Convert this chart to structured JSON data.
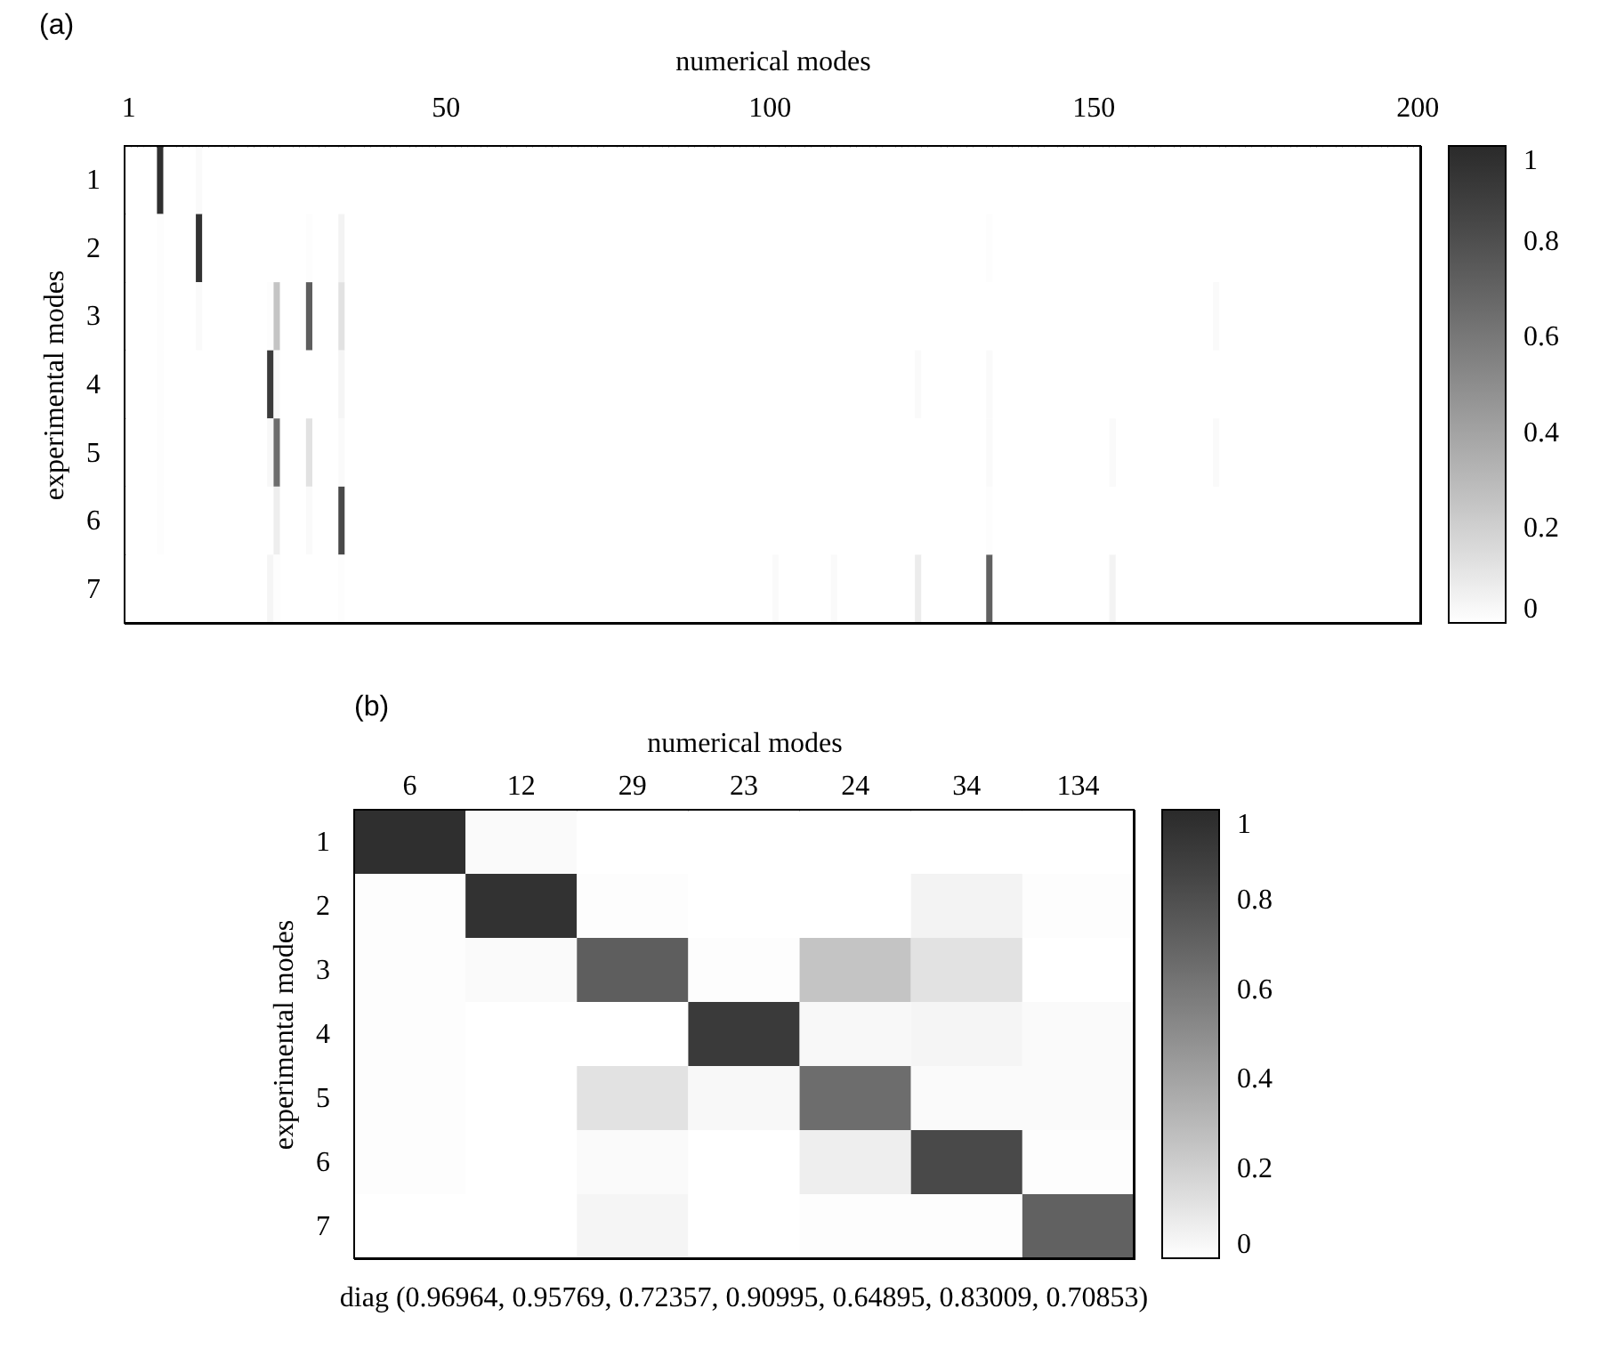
{
  "chart_data": [
    {
      "type": "heatmap",
      "title": "(a)",
      "xlabel": "numerical modes",
      "ylabel": "experimental modes",
      "x": [
        1,
        2,
        3,
        4,
        5,
        6,
        7,
        8,
        9,
        10,
        11,
        12,
        13,
        14,
        15,
        16,
        17,
        18,
        19,
        20,
        21,
        22,
        23,
        24,
        25,
        26,
        27,
        28,
        29,
        30,
        31,
        32,
        33,
        34,
        35,
        36,
        37,
        38,
        39,
        40,
        41,
        42,
        43,
        44,
        45,
        46,
        47,
        48,
        49,
        50,
        51,
        52,
        53,
        54,
        55,
        56,
        57,
        58,
        59,
        60,
        61,
        62,
        63,
        64,
        65,
        66,
        67,
        68,
        69,
        70,
        71,
        72,
        73,
        74,
        75,
        76,
        77,
        78,
        79,
        80,
        81,
        82,
        83,
        84,
        85,
        86,
        87,
        88,
        89,
        90,
        91,
        92,
        93,
        94,
        95,
        96,
        97,
        98,
        99,
        100,
        101,
        102,
        103,
        104,
        105,
        106,
        107,
        108,
        109,
        110,
        111,
        112,
        113,
        114,
        115,
        116,
        117,
        118,
        119,
        120,
        121,
        122,
        123,
        124,
        125,
        126,
        127,
        128,
        129,
        130,
        131,
        132,
        133,
        134,
        135,
        136,
        137,
        138,
        139,
        140,
        141,
        142,
        143,
        144,
        145,
        146,
        147,
        148,
        149,
        150,
        151,
        152,
        153,
        154,
        155,
        156,
        157,
        158,
        159,
        160,
        161,
        162,
        163,
        164,
        165,
        166,
        167,
        168,
        169,
        170,
        171,
        172,
        173,
        174,
        175,
        176,
        177,
        178,
        179,
        180,
        181,
        182,
        183,
        184,
        185,
        186,
        187,
        188,
        189,
        190,
        191,
        192,
        193,
        194,
        195,
        196,
        197,
        198,
        199,
        200
      ],
      "xlim": [
        0.5,
        200.5
      ],
      "xticks": [
        1,
        50,
        100,
        150,
        200
      ],
      "y_categories": [
        "1",
        "2",
        "3",
        "4",
        "5",
        "6",
        "7"
      ],
      "cells": [
        [
          0,
          0,
          0,
          0,
          0,
          0.96964,
          0,
          0,
          0,
          0,
          0,
          0.02,
          0,
          0,
          0,
          0,
          0,
          0,
          0,
          0,
          0,
          0,
          0,
          0,
          0,
          0,
          0,
          0,
          0,
          0,
          0,
          0,
          0,
          0,
          0,
          0,
          0,
          0,
          0,
          0,
          0,
          0,
          0,
          0,
          0,
          0,
          0,
          0,
          0,
          0,
          0,
          0,
          0,
          0,
          0,
          0,
          0,
          0,
          0,
          0,
          0,
          0,
          0,
          0,
          0,
          0,
          0,
          0,
          0,
          0,
          0,
          0,
          0,
          0,
          0,
          0,
          0,
          0,
          0,
          0,
          0,
          0,
          0,
          0,
          0,
          0,
          0,
          0,
          0,
          0,
          0,
          0,
          0,
          0,
          0,
          0,
          0,
          0,
          0,
          0,
          0,
          0,
          0,
          0,
          0,
          0,
          0,
          0,
          0,
          0,
          0,
          0,
          0,
          0,
          0,
          0,
          0,
          0,
          0,
          0,
          0,
          0,
          0,
          0,
          0,
          0,
          0,
          0,
          0,
          0,
          0,
          0,
          0,
          0,
          0,
          0,
          0,
          0,
          0,
          0,
          0,
          0,
          0,
          0,
          0,
          0,
          0,
          0,
          0,
          0,
          0,
          0,
          0,
          0,
          0,
          0,
          0,
          0,
          0,
          0,
          0,
          0,
          0,
          0,
          0,
          0,
          0,
          0,
          0,
          0,
          0,
          0,
          0,
          0,
          0,
          0,
          0,
          0,
          0,
          0,
          0,
          0,
          0,
          0,
          0,
          0,
          0,
          0,
          0,
          0,
          0,
          0,
          0,
          0,
          0,
          0,
          0,
          0,
          0,
          0
        ],
        [
          0,
          0,
          0,
          0,
          0,
          0.01,
          0,
          0,
          0,
          0,
          0,
          0.95769,
          0,
          0,
          0,
          0,
          0,
          0,
          0,
          0,
          0,
          0,
          0,
          0,
          0,
          0,
          0,
          0,
          0.01,
          0,
          0,
          0,
          0,
          0.05,
          0,
          0,
          0,
          0,
          0,
          0,
          0,
          0,
          0,
          0,
          0,
          0,
          0,
          0,
          0,
          0,
          0,
          0,
          0,
          0,
          0,
          0,
          0,
          0,
          0,
          0,
          0,
          0,
          0,
          0,
          0,
          0,
          0,
          0,
          0,
          0,
          0,
          0,
          0,
          0,
          0,
          0,
          0,
          0,
          0,
          0,
          0,
          0,
          0,
          0,
          0,
          0,
          0,
          0,
          0,
          0,
          0,
          0,
          0,
          0,
          0,
          0,
          0,
          0,
          0,
          0,
          0,
          0,
          0,
          0,
          0,
          0,
          0,
          0,
          0,
          0,
          0,
          0,
          0,
          0,
          0,
          0,
          0,
          0,
          0,
          0,
          0,
          0,
          0,
          0,
          0,
          0,
          0,
          0,
          0,
          0,
          0,
          0,
          0,
          0.01,
          0,
          0,
          0,
          0,
          0,
          0,
          0,
          0,
          0,
          0,
          0,
          0,
          0,
          0,
          0,
          0,
          0,
          0,
          0,
          0,
          0,
          0,
          0,
          0,
          0,
          0,
          0,
          0,
          0,
          0,
          0,
          0,
          0,
          0,
          0,
          0,
          0,
          0,
          0,
          0,
          0,
          0,
          0,
          0,
          0,
          0,
          0,
          0,
          0,
          0,
          0,
          0,
          0,
          0,
          0,
          0,
          0,
          0,
          0,
          0,
          0,
          0,
          0,
          0,
          0,
          0
        ],
        [
          0,
          0,
          0,
          0,
          0,
          0.01,
          0,
          0,
          0,
          0,
          0,
          0.02,
          0,
          0,
          0,
          0,
          0,
          0,
          0,
          0,
          0,
          0,
          0.01,
          0.25,
          0,
          0,
          0,
          0,
          0.72357,
          0,
          0,
          0,
          0,
          0.12,
          0,
          0,
          0,
          0,
          0,
          0,
          0,
          0,
          0,
          0,
          0,
          0,
          0,
          0,
          0,
          0,
          0,
          0,
          0,
          0,
          0,
          0,
          0,
          0,
          0,
          0,
          0,
          0,
          0,
          0,
          0,
          0,
          0,
          0,
          0,
          0,
          0,
          0,
          0,
          0,
          0,
          0,
          0,
          0,
          0,
          0,
          0,
          0,
          0,
          0,
          0,
          0,
          0,
          0,
          0,
          0,
          0,
          0,
          0,
          0,
          0,
          0,
          0,
          0,
          0,
          0,
          0,
          0,
          0,
          0,
          0,
          0,
          0,
          0,
          0,
          0,
          0,
          0,
          0,
          0,
          0,
          0,
          0,
          0,
          0,
          0,
          0,
          0,
          0,
          0,
          0,
          0,
          0,
          0,
          0,
          0,
          0,
          0,
          0,
          0,
          0,
          0,
          0,
          0,
          0,
          0,
          0,
          0,
          0,
          0,
          0,
          0,
          0,
          0,
          0,
          0,
          0,
          0,
          0,
          0,
          0,
          0,
          0,
          0,
          0,
          0,
          0,
          0,
          0,
          0,
          0,
          0,
          0,
          0,
          0.02,
          0,
          0,
          0,
          0,
          0,
          0,
          0,
          0,
          0,
          0,
          0,
          0,
          0,
          0,
          0,
          0,
          0,
          0,
          0,
          0,
          0,
          0,
          0,
          0,
          0,
          0,
          0,
          0,
          0,
          0,
          0
        ],
        [
          0,
          0,
          0,
          0,
          0,
          0.01,
          0,
          0,
          0,
          0,
          0,
          0,
          0,
          0,
          0,
          0,
          0,
          0,
          0,
          0,
          0,
          0,
          0.90995,
          0.03,
          0,
          0,
          0,
          0,
          0,
          0,
          0,
          0,
          0,
          0.04,
          0,
          0,
          0,
          0,
          0,
          0,
          0,
          0,
          0,
          0,
          0,
          0,
          0,
          0,
          0,
          0,
          0,
          0,
          0,
          0,
          0,
          0,
          0,
          0,
          0,
          0,
          0,
          0,
          0,
          0,
          0,
          0,
          0,
          0,
          0,
          0,
          0,
          0,
          0,
          0,
          0,
          0,
          0,
          0,
          0,
          0,
          0,
          0,
          0,
          0,
          0,
          0,
          0,
          0,
          0,
          0,
          0,
          0,
          0,
          0,
          0,
          0,
          0,
          0,
          0,
          0,
          0,
          0,
          0,
          0,
          0,
          0,
          0,
          0,
          0,
          0,
          0,
          0,
          0,
          0,
          0,
          0,
          0,
          0,
          0,
          0,
          0,
          0,
          0.02,
          0,
          0,
          0,
          0,
          0,
          0,
          0,
          0,
          0,
          0,
          0.02,
          0,
          0,
          0,
          0,
          0,
          0,
          0,
          0,
          0,
          0,
          0,
          0,
          0,
          0,
          0,
          0,
          0,
          0,
          0,
          0,
          0,
          0,
          0,
          0,
          0,
          0,
          0,
          0,
          0,
          0,
          0,
          0,
          0,
          0,
          0,
          0,
          0,
          0,
          0,
          0,
          0,
          0,
          0,
          0,
          0,
          0,
          0,
          0,
          0,
          0,
          0,
          0,
          0,
          0,
          0,
          0,
          0,
          0,
          0,
          0,
          0,
          0,
          0,
          0,
          0,
          0
        ],
        [
          0,
          0,
          0,
          0,
          0,
          0.01,
          0,
          0,
          0,
          0,
          0,
          0,
          0,
          0,
          0,
          0,
          0,
          0,
          0,
          0,
          0,
          0,
          0.03,
          0.64895,
          0,
          0,
          0,
          0,
          0.12,
          0,
          0,
          0,
          0,
          0.02,
          0,
          0,
          0,
          0,
          0,
          0,
          0,
          0,
          0,
          0,
          0,
          0,
          0,
          0,
          0,
          0,
          0,
          0,
          0,
          0,
          0,
          0,
          0,
          0,
          0,
          0,
          0,
          0,
          0,
          0,
          0,
          0,
          0,
          0,
          0,
          0,
          0,
          0,
          0,
          0,
          0,
          0,
          0,
          0,
          0,
          0,
          0,
          0,
          0,
          0,
          0,
          0,
          0,
          0,
          0,
          0,
          0,
          0,
          0,
          0,
          0,
          0,
          0,
          0,
          0,
          0,
          0,
          0,
          0,
          0,
          0,
          0,
          0,
          0,
          0,
          0,
          0,
          0,
          0,
          0,
          0,
          0,
          0,
          0,
          0,
          0,
          0,
          0,
          0,
          0,
          0,
          0,
          0,
          0,
          0,
          0,
          0,
          0,
          0,
          0.02,
          0,
          0,
          0,
          0,
          0,
          0,
          0,
          0,
          0,
          0,
          0,
          0,
          0,
          0,
          0,
          0,
          0,
          0,
          0.02,
          0,
          0,
          0,
          0,
          0,
          0,
          0,
          0,
          0,
          0,
          0,
          0,
          0,
          0,
          0,
          0.02,
          0,
          0,
          0,
          0,
          0,
          0,
          0,
          0,
          0,
          0,
          0,
          0,
          0,
          0,
          0,
          0,
          0,
          0,
          0,
          0,
          0,
          0,
          0,
          0,
          0,
          0,
          0,
          0,
          0,
          0,
          0
        ],
        [
          0,
          0,
          0,
          0,
          0,
          0.01,
          0,
          0,
          0,
          0,
          0,
          0,
          0,
          0,
          0,
          0,
          0,
          0,
          0,
          0,
          0,
          0,
          0,
          0.07,
          0,
          0,
          0,
          0,
          0.02,
          0,
          0,
          0,
          0,
          0.83009,
          0,
          0,
          0,
          0,
          0,
          0,
          0,
          0,
          0,
          0,
          0,
          0,
          0,
          0,
          0,
          0,
          0,
          0,
          0,
          0,
          0,
          0,
          0,
          0,
          0,
          0,
          0,
          0,
          0,
          0,
          0,
          0,
          0,
          0,
          0,
          0,
          0,
          0,
          0,
          0,
          0,
          0,
          0,
          0,
          0,
          0,
          0,
          0,
          0,
          0,
          0,
          0,
          0,
          0,
          0,
          0,
          0,
          0,
          0,
          0,
          0,
          0,
          0,
          0,
          0,
          0,
          0,
          0,
          0,
          0,
          0,
          0,
          0,
          0,
          0,
          0,
          0,
          0,
          0,
          0,
          0,
          0,
          0,
          0,
          0,
          0,
          0,
          0,
          0,
          0,
          0,
          0,
          0,
          0,
          0,
          0,
          0,
          0,
          0,
          0.01,
          0,
          0,
          0,
          0,
          0,
          0,
          0,
          0,
          0,
          0,
          0,
          0,
          0,
          0,
          0,
          0,
          0,
          0,
          0,
          0,
          0,
          0,
          0,
          0,
          0,
          0,
          0,
          0,
          0,
          0,
          0,
          0,
          0,
          0,
          0,
          0,
          0,
          0,
          0,
          0,
          0,
          0,
          0,
          0,
          0,
          0,
          0,
          0,
          0,
          0,
          0,
          0,
          0,
          0,
          0,
          0,
          0,
          0,
          0,
          0,
          0,
          0,
          0,
          0,
          0,
          0
        ],
        [
          0,
          0,
          0,
          0,
          0,
          0,
          0,
          0,
          0,
          0,
          0,
          0,
          0,
          0,
          0,
          0,
          0,
          0,
          0,
          0,
          0,
          0,
          0.04,
          0.01,
          0,
          0,
          0,
          0,
          0,
          0,
          0,
          0,
          0,
          0.01,
          0,
          0,
          0,
          0,
          0,
          0,
          0,
          0,
          0,
          0,
          0,
          0,
          0,
          0,
          0,
          0,
          0,
          0,
          0,
          0,
          0,
          0,
          0,
          0,
          0,
          0,
          0,
          0,
          0,
          0,
          0,
          0,
          0,
          0,
          0,
          0,
          0,
          0,
          0,
          0,
          0,
          0,
          0,
          0,
          0,
          0,
          0,
          0,
          0,
          0,
          0,
          0,
          0,
          0,
          0,
          0,
          0,
          0,
          0,
          0,
          0,
          0,
          0,
          0,
          0,
          0,
          0.02,
          0,
          0,
          0,
          0,
          0,
          0,
          0,
          0,
          0.02,
          0,
          0,
          0,
          0,
          0,
          0,
          0,
          0,
          0,
          0,
          0,
          0,
          0.08,
          0,
          0,
          0,
          0,
          0,
          0,
          0,
          0,
          0,
          0,
          0.70853,
          0,
          0,
          0,
          0,
          0,
          0,
          0,
          0,
          0,
          0,
          0,
          0,
          0,
          0,
          0,
          0,
          0,
          0,
          0.05,
          0,
          0,
          0,
          0,
          0,
          0,
          0,
          0,
          0,
          0,
          0,
          0,
          0,
          0,
          0,
          0,
          0,
          0,
          0,
          0,
          0,
          0,
          0,
          0,
          0,
          0,
          0,
          0,
          0,
          0,
          0,
          0,
          0,
          0,
          0,
          0,
          0,
          0,
          0,
          0,
          0,
          0,
          0,
          0,
          0,
          0,
          0
        ]
      ],
      "clim": [
        0,
        1
      ],
      "cticks": [
        0,
        0.2,
        0.4,
        0.6,
        0.8,
        1
      ]
    },
    {
      "type": "heatmap",
      "title": "(b)",
      "xlabel": "numerical modes",
      "ylabel": "experimental modes",
      "categories": [
        "6",
        "12",
        "29",
        "23",
        "24",
        "34",
        "134"
      ],
      "y_categories": [
        "1",
        "2",
        "3",
        "4",
        "5",
        "6",
        "7"
      ],
      "cells": [
        [
          0.96964,
          0.02,
          0,
          0,
          0,
          0,
          0
        ],
        [
          0.01,
          0.95769,
          0.01,
          0,
          0,
          0.05,
          0.01
        ],
        [
          0.01,
          0.02,
          0.72357,
          0.01,
          0.25,
          0.12,
          0
        ],
        [
          0.01,
          0,
          0,
          0.90995,
          0.03,
          0.04,
          0.02
        ],
        [
          0.01,
          0,
          0.12,
          0.03,
          0.64895,
          0.02,
          0.02
        ],
        [
          0.01,
          0,
          0.02,
          0,
          0.07,
          0.83009,
          0.01
        ],
        [
          0,
          0,
          0.04,
          0,
          0.01,
          0.01,
          0.70853
        ]
      ],
      "clim": [
        0,
        1
      ],
      "cticks": [
        0,
        0.2,
        0.4,
        0.6,
        0.8,
        1
      ],
      "annotations": [
        "diag (0.96964, 0.95769, 0.72357, 0.90995, 0.64895, 0.83009, 0.70853)"
      ]
    }
  ]
}
